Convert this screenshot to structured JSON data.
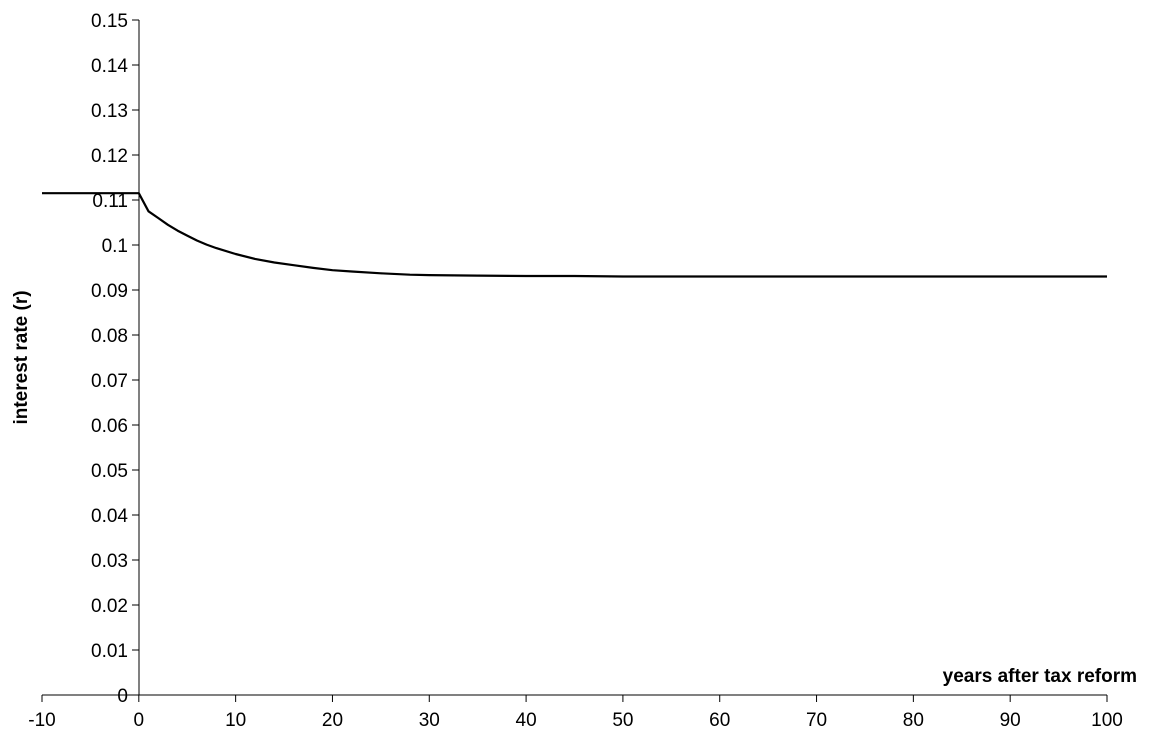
{
  "chart_data": {
    "type": "line",
    "title": "",
    "xlabel": "years after tax reform",
    "ylabel": "interest rate (r)",
    "xlim": [
      -10,
      100
    ],
    "ylim": [
      0,
      0.15
    ],
    "x_ticks": [
      -10,
      0,
      10,
      20,
      30,
      40,
      50,
      60,
      70,
      80,
      90,
      100
    ],
    "x_tick_labels": [
      "-10",
      "0",
      "10",
      "20",
      "30",
      "40",
      "50",
      "60",
      "70",
      "80",
      "90",
      "100"
    ],
    "y_ticks": [
      0,
      0.01,
      0.02,
      0.03,
      0.04,
      0.05,
      0.06,
      0.07,
      0.08,
      0.09,
      0.1,
      0.11,
      0.12,
      0.13,
      0.14,
      0.15
    ],
    "y_tick_labels": [
      "0",
      "0.01",
      "0.02",
      "0.03",
      "0.04",
      "0.05",
      "0.06",
      "0.07",
      "0.08",
      "0.09",
      "0.1",
      "0.11",
      "0.12",
      "0.13",
      "0.14",
      "0.15"
    ],
    "grid": false,
    "legend": "none",
    "series": [
      {
        "color": "#000000",
        "x": [
          -10,
          0,
          1,
          2,
          3,
          4,
          5,
          6,
          7,
          8,
          10,
          12,
          14,
          16,
          18,
          20,
          22,
          25,
          28,
          30,
          35,
          40,
          45,
          50,
          60,
          70,
          80,
          90,
          100
        ],
        "y": [
          0.1115,
          0.1115,
          0.1075,
          0.106,
          0.1045,
          0.1032,
          0.1021,
          0.101,
          0.1001,
          0.0993,
          0.098,
          0.0969,
          0.0961,
          0.0955,
          0.0949,
          0.0944,
          0.0941,
          0.0937,
          0.0934,
          0.0933,
          0.0932,
          0.0931,
          0.0931,
          0.093,
          0.093,
          0.093,
          0.093,
          0.093,
          0.093
        ]
      }
    ]
  }
}
